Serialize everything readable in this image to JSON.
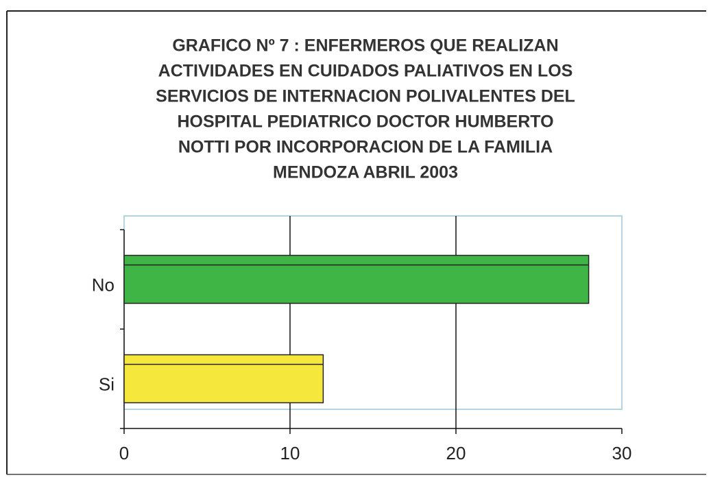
{
  "chart_data": {
    "type": "bar",
    "orientation": "horizontal",
    "title": [
      "GRAFICO Nº 7 : ENFERMEROS QUE REALIZAN",
      "ACTIVIDADES EN CUIDADOS PALIATIVOS EN LOS",
      "SERVICIOS DE INTERNACION POLIVALENTES DEL",
      "HOSPITAL PEDIATRICO DOCTOR HUMBERTO",
      "NOTTI POR INCORPORACION DE LA FAMILIA",
      "MENDOZA ABRIL 2003"
    ],
    "categories": [
      "No",
      "Si"
    ],
    "values": [
      28,
      12
    ],
    "colors": [
      "#3fb546",
      "#f6e73c"
    ],
    "xlim": [
      0,
      30
    ],
    "xticks": [
      0,
      10,
      20,
      30
    ],
    "grid": true
  }
}
